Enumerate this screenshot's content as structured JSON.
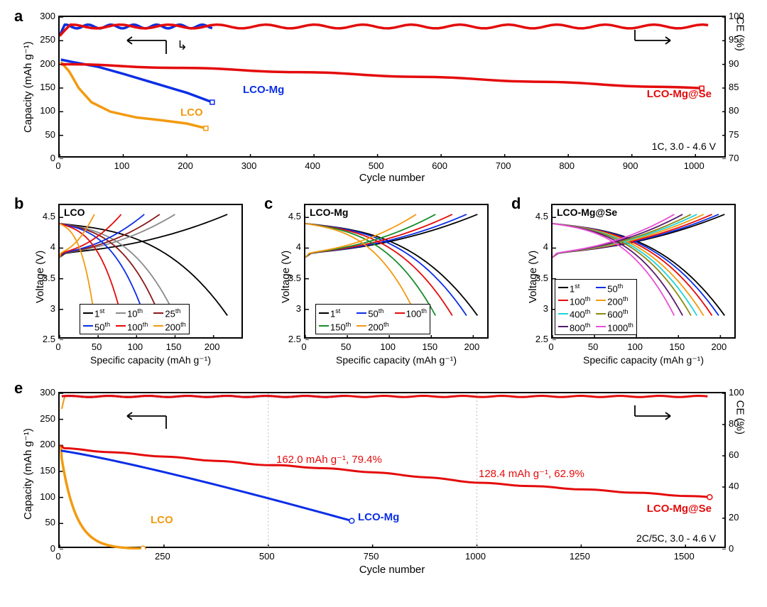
{
  "colors": {
    "lco": "#f29a0f",
    "lcoMg": "#0b2ee6",
    "lcoMgSe": "#e40b0b",
    "axis": "#000000",
    "grid": "#bdbdbd",
    "black": "#000000",
    "gray": "#8a8a8a",
    "darkred": "#8b1a1a",
    "red": "#e40b0b",
    "orange": "#f29a0f",
    "blue": "#0b2ee6",
    "green": "#188d2c",
    "olive": "#8a8a12",
    "cyan": "#1fd4da",
    "purple": "#571b6e",
    "magenta": "#ea4fd6"
  },
  "panels": {
    "a": {
      "label": "a",
      "xlim": [
        0,
        1050
      ],
      "ylim_left": [
        0,
        300
      ],
      "ylim_right": [
        70,
        100
      ],
      "xticks": [
        0,
        100,
        200,
        300,
        400,
        500,
        600,
        700,
        800,
        900,
        1000
      ],
      "yticks_left": [
        0,
        50,
        100,
        150,
        200,
        250,
        300
      ],
      "yticks_right": [
        70,
        75,
        80,
        85,
        90,
        95,
        100
      ],
      "xtitle": "Cycle number",
      "ytitle_left": "Capacity (mAh g⁻¹)",
      "ytitle_right": "CE (%)",
      "note": "1C, 3.0 - 4.6 V",
      "annos": {
        "lco": "LCO",
        "lcoMg": "LCO-Mg",
        "lcoMgSe": "LCO-Mg@Se"
      }
    },
    "b": {
      "label": "b",
      "title": "LCO",
      "xlim": [
        0,
        240
      ],
      "ylim": [
        2.5,
        4.7
      ],
      "xticks": [
        0,
        50,
        100,
        150,
        200
      ],
      "yticks": [
        2.5,
        3.0,
        3.5,
        4.0,
        4.5
      ],
      "xtitle": "Specific capacity (mAh g⁻¹)",
      "ytitle": "Voltage (V)",
      "legend": [
        {
          "label": "1",
          "sup": "st",
          "color": "black"
        },
        {
          "label": "10",
          "sup": "th",
          "color": "gray"
        },
        {
          "label": "25",
          "sup": "th",
          "color": "darkred"
        },
        {
          "label": "50",
          "sup": "th",
          "color": "blue"
        },
        {
          "label": "100",
          "sup": "th",
          "color": "red"
        },
        {
          "label": "200",
          "sup": "th",
          "color": "orange"
        }
      ]
    },
    "c": {
      "label": "c",
      "title": "LCO-Mg",
      "xlim": [
        0,
        220
      ],
      "ylim": [
        2.5,
        4.7
      ],
      "xticks": [
        0,
        50,
        100,
        150,
        200
      ],
      "yticks": [
        2.5,
        3.0,
        3.5,
        4.0,
        4.5
      ],
      "xtitle": "Specific capacity (mAh g⁻¹)",
      "ytitle": "Voltage (V)",
      "legend": [
        {
          "label": "1",
          "sup": "st",
          "color": "black"
        },
        {
          "label": "50",
          "sup": "th",
          "color": "blue"
        },
        {
          "label": "100",
          "sup": "th",
          "color": "red"
        },
        {
          "label": "150",
          "sup": "th",
          "color": "green"
        },
        {
          "label": "200",
          "sup": "th",
          "color": "orange"
        }
      ]
    },
    "d": {
      "label": "d",
      "title": "LCO-Mg@Se",
      "xlim": [
        0,
        220
      ],
      "ylim": [
        2.5,
        4.7
      ],
      "xticks": [
        0,
        50,
        100,
        150,
        200
      ],
      "yticks": [
        2.5,
        3.0,
        3.5,
        4.0,
        4.5
      ],
      "xtitle": "Specific capacity (mAh g⁻¹)",
      "ytitle": "Voltage (V)",
      "legend": [
        {
          "label": "1",
          "sup": "st",
          "color": "black"
        },
        {
          "label": "50",
          "sup": "th",
          "color": "blue"
        },
        {
          "label": "100",
          "sup": "th",
          "color": "red"
        },
        {
          "label": "200",
          "sup": "th",
          "color": "orange"
        },
        {
          "label": "400",
          "sup": "th",
          "color": "cyan"
        },
        {
          "label": "600",
          "sup": "th",
          "color": "olive"
        },
        {
          "label": "800",
          "sup": "th",
          "color": "purple"
        },
        {
          "label": "1000",
          "sup": "th",
          "color": "magenta"
        }
      ]
    },
    "e": {
      "label": "e",
      "xlim": [
        0,
        1600
      ],
      "ylim_left": [
        0,
        300
      ],
      "ylim_right": [
        0,
        100
      ],
      "xticks": [
        0,
        250,
        500,
        750,
        1000,
        1250,
        1500
      ],
      "yticks_left": [
        0,
        50,
        100,
        150,
        200,
        250,
        300
      ],
      "yticks_right": [
        0,
        20,
        40,
        60,
        80,
        100
      ],
      "xtitle": "Cycle number",
      "ytitle_left": "Capacity (mAh g⁻¹)",
      "ytitle_right": "CE (%)",
      "note": "2C/5C, 3.0 - 4.6 V",
      "annos": {
        "lco": "LCO",
        "lcoMg": "LCO-Mg",
        "lcoMgSe": "LCO-Mg@Se",
        "point1": "162.0 mAh g⁻¹, 79.4%",
        "point2": "128.4 mAh g⁻¹, 62.9%"
      },
      "capacity": {
        "lco_end_x": 200,
        "lco_start_y": 190,
        "lcoMg_end_x": 700,
        "lcoMg_start_y": 190,
        "lcoMg_end_y": 60,
        "lcomgse_end_x": 1560,
        "lcomgse_start_y": 195,
        "lcomgse_end_y": 100,
        "lcomgse_500_y": 162,
        "lcomgse_1000_y": 128.4
      }
    }
  }
}
